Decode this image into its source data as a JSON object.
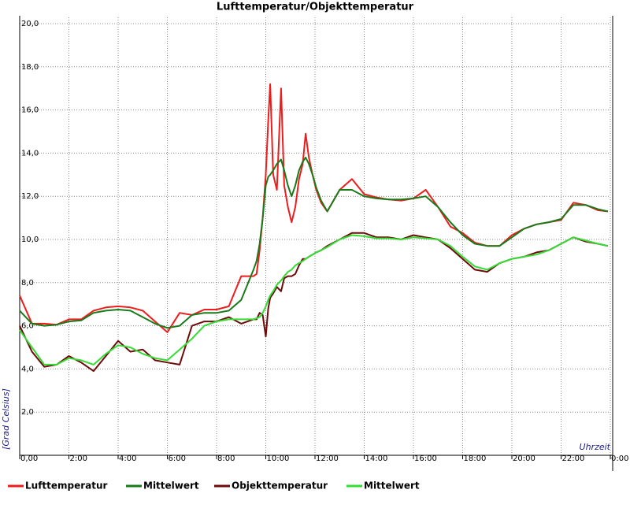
{
  "chart_data": {
    "type": "line",
    "title": "Lufttemperatur/Objekttemperatur",
    "y_label": "[Grad Celsius]",
    "x_label": "Uhrzeit",
    "grid": true,
    "legend": "bottom",
    "xlim": [
      0,
      24
    ],
    "xticks": [
      {
        "value": 0,
        "label": "0,00"
      },
      {
        "value": 2,
        "label": "2:00"
      },
      {
        "value": 4,
        "label": "4:00"
      },
      {
        "value": 6,
        "label": "6:00"
      },
      {
        "value": 8,
        "label": "8:00"
      },
      {
        "value": 10,
        "label": "10:00"
      },
      {
        "value": 12,
        "label": "12:00"
      },
      {
        "value": 14,
        "label": "14:00"
      },
      {
        "value": 16,
        "label": "16:00"
      },
      {
        "value": 18,
        "label": "18:00"
      },
      {
        "value": 20,
        "label": "20:00"
      },
      {
        "value": 22,
        "label": "22:00"
      },
      {
        "value": 24,
        "label": "0:00"
      }
    ],
    "ylim": [
      0,
      20
    ],
    "yticks": [
      {
        "value": 2,
        "label": "2,0"
      },
      {
        "value": 4,
        "label": "4,0"
      },
      {
        "value": 6,
        "label": "6,0"
      },
      {
        "value": 8,
        "label": "8,0"
      },
      {
        "value": 10,
        "label": "10,0"
      },
      {
        "value": 12,
        "label": "12,0"
      },
      {
        "value": 14,
        "label": "14,0"
      },
      {
        "value": 16,
        "label": "16,0"
      },
      {
        "value": 18,
        "label": "18,0"
      },
      {
        "value": 20,
        "label": "20,0"
      }
    ],
    "x": [
      0,
      0.5,
      1,
      1.5,
      2,
      2.5,
      3,
      3.5,
      4,
      4.5,
      5,
      5.5,
      6,
      6.5,
      7,
      7.5,
      8,
      8.5,
      9,
      9.5,
      9.625,
      9.75,
      9.875,
      10,
      10.1,
      10.18,
      10.3,
      10.45,
      10.62,
      10.75,
      10.9,
      11.05,
      11.2,
      11.35,
      11.5,
      11.62,
      11.75,
      11.9,
      12.05,
      12.25,
      12.5,
      13,
      13.5,
      14,
      14.5,
      15,
      15.5,
      16,
      16.5,
      17,
      17.5,
      18,
      18.5,
      19,
      19.5,
      20,
      20.5,
      21,
      21.5,
      22,
      22.5,
      23,
      23.5,
      23.9
    ],
    "series": [
      {
        "name": "Lufttemperatur",
        "color": "#ee1c1c",
        "values": [
          7.4,
          6.1,
          6.1,
          6.05,
          6.3,
          6.3,
          6.7,
          6.85,
          6.9,
          6.85,
          6.7,
          6.2,
          5.7,
          6.6,
          6.5,
          6.75,
          6.75,
          6.9,
          8.3,
          8.3,
          8.4,
          9.5,
          11.0,
          13.0,
          15.5,
          17.2,
          13.0,
          12.3,
          17.0,
          12.5,
          11.5,
          10.8,
          11.5,
          12.8,
          13.5,
          14.9,
          13.8,
          13.0,
          12.3,
          11.7,
          11.3,
          12.3,
          12.8,
          12.1,
          11.95,
          11.85,
          11.8,
          11.9,
          12.3,
          11.5,
          10.6,
          10.3,
          9.85,
          9.7,
          9.7,
          10.2,
          10.5,
          10.7,
          10.8,
          10.9,
          11.7,
          11.6,
          11.35,
          11.3
        ]
      },
      {
        "name": "Mittelwert",
        "color": "#1a7a1a",
        "values": [
          6.7,
          6.1,
          6.0,
          6.05,
          6.2,
          6.25,
          6.6,
          6.7,
          6.75,
          6.7,
          6.4,
          6.1,
          5.9,
          6.0,
          6.5,
          6.6,
          6.6,
          6.7,
          7.2,
          8.6,
          9.0,
          9.8,
          11.0,
          12.5,
          12.9,
          13.0,
          13.2,
          13.5,
          13.7,
          13.2,
          12.5,
          12.0,
          12.5,
          13.2,
          13.6,
          13.8,
          13.5,
          13.0,
          12.4,
          11.8,
          11.3,
          12.3,
          12.3,
          12.0,
          11.9,
          11.85,
          11.85,
          11.9,
          12.0,
          11.5,
          10.8,
          10.2,
          9.8,
          9.7,
          9.7,
          10.1,
          10.5,
          10.7,
          10.8,
          10.95,
          11.6,
          11.6,
          11.4,
          11.3
        ]
      },
      {
        "name": "Objekttemperatur",
        "color": "#6e0a0a",
        "values": [
          6.0,
          4.8,
          4.1,
          4.2,
          4.6,
          4.3,
          3.9,
          4.6,
          5.3,
          4.8,
          4.9,
          4.4,
          4.3,
          4.2,
          6.0,
          6.2,
          6.2,
          6.4,
          6.1,
          6.3,
          6.3,
          6.6,
          6.5,
          5.5,
          6.8,
          7.3,
          7.5,
          7.8,
          7.6,
          8.2,
          8.3,
          8.3,
          8.4,
          8.8,
          9.1,
          9.1,
          9.2,
          9.3,
          9.4,
          9.5,
          9.7,
          10.0,
          10.3,
          10.3,
          10.1,
          10.1,
          10.0,
          10.2,
          10.1,
          10.0,
          9.6,
          9.1,
          8.6,
          8.5,
          8.9,
          9.1,
          9.2,
          9.4,
          9.5,
          9.8,
          10.1,
          9.9,
          9.8,
          9.7
        ]
      },
      {
        "name": "Mittelwert",
        "color": "#33dd33",
        "values": [
          5.8,
          5.0,
          4.2,
          4.2,
          4.5,
          4.4,
          4.2,
          4.7,
          5.1,
          5.0,
          4.7,
          4.5,
          4.4,
          4.9,
          5.4,
          6.0,
          6.2,
          6.3,
          6.3,
          6.3,
          6.35,
          6.4,
          6.6,
          6.9,
          7.2,
          7.4,
          7.6,
          7.9,
          8.1,
          8.3,
          8.5,
          8.6,
          8.8,
          8.9,
          9.0,
          9.1,
          9.2,
          9.3,
          9.4,
          9.5,
          9.65,
          10.0,
          10.2,
          10.15,
          10.05,
          10.05,
          10.0,
          10.1,
          10.05,
          10.0,
          9.7,
          9.2,
          8.75,
          8.6,
          8.9,
          9.1,
          9.2,
          9.3,
          9.5,
          9.8,
          10.1,
          9.95,
          9.8,
          9.7
        ]
      }
    ]
  }
}
